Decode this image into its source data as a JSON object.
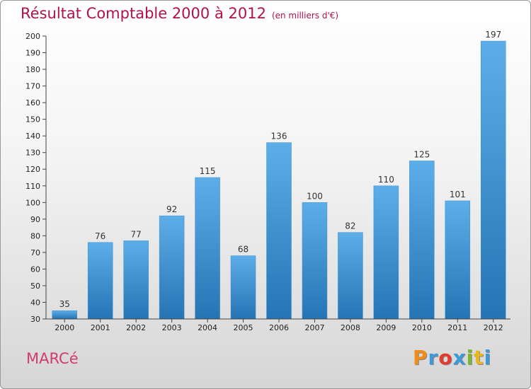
{
  "header": {
    "title": "Résultat Comptable 2000 à 2012",
    "subtitle": "(en milliers d'€)"
  },
  "footer": {
    "place": "MARCé",
    "brand": "Proxiti"
  },
  "colors": {
    "title": "#b0124e",
    "bar_top": "#5daee8",
    "bar_bottom": "#2574b4",
    "brand_letters": [
      "#f08c1a",
      "#3c9ad8",
      "#e33b2e",
      "#3c9ad8",
      "#7cb82f",
      "#e8b81a",
      "#3c9ad8"
    ]
  },
  "chart_data": {
    "type": "bar",
    "title": "Résultat Comptable 2000 à 2012",
    "subtitle": "(en milliers d'€)",
    "categories": [
      "2000",
      "2001",
      "2002",
      "2003",
      "2004",
      "2005",
      "2006",
      "2007",
      "2008",
      "2009",
      "2010",
      "2011",
      "2012"
    ],
    "values": [
      35,
      76,
      77,
      92,
      115,
      68,
      136,
      100,
      82,
      110,
      125,
      101,
      197
    ],
    "xlabel": "",
    "ylabel": "",
    "ylim": [
      30,
      200
    ],
    "yticks": [
      30,
      40,
      50,
      60,
      70,
      80,
      90,
      100,
      110,
      120,
      130,
      140,
      150,
      160,
      170,
      180,
      190,
      200
    ],
    "grid": false,
    "legend": "none"
  }
}
